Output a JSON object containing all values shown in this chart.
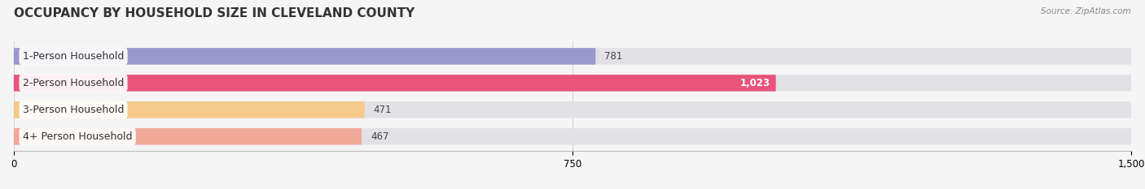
{
  "title": "OCCUPANCY BY HOUSEHOLD SIZE IN CLEVELAND COUNTY",
  "source": "Source: ZipAtlas.com",
  "categories": [
    "1-Person Household",
    "2-Person Household",
    "3-Person Household",
    "4+ Person Household"
  ],
  "values": [
    781,
    1023,
    471,
    467
  ],
  "bar_colors": [
    "#9999cc",
    "#e8547a",
    "#f5c98a",
    "#f0a898"
  ],
  "bar_bg_color": "#e2e2e6",
  "xlim": [
    0,
    1500
  ],
  "xticks": [
    0,
    750,
    1500
  ],
  "background_color": "#f5f5f5",
  "title_fontsize": 11,
  "label_fontsize": 9,
  "value_fontsize": 8.5,
  "bar_height": 0.62
}
